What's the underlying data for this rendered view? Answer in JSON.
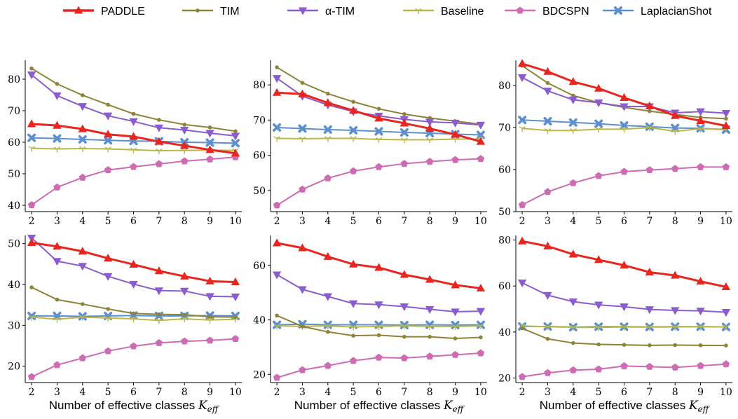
{
  "legend": [
    {
      "name": "PADDLE",
      "color": "#e8251f",
      "marker": "triangle-up",
      "width": 3
    },
    {
      "name": "TIM",
      "color": "#8f8339",
      "marker": "dot",
      "width": 2
    },
    {
      "name": "α-TIM",
      "color": "#8a5ccf",
      "marker": "triangle-down",
      "width": 2
    },
    {
      "name": "Baseline",
      "color": "#b9b747",
      "marker": "tri",
      "width": 2
    },
    {
      "name": "BDCSPN",
      "color": "#cd6bb3",
      "marker": "pentagon",
      "width": 2
    },
    {
      "name": "LaplacianShot",
      "color": "#5b8fd0",
      "marker": "x",
      "width": 2
    }
  ],
  "chart_data": [
    {
      "type": "line",
      "panel": "top-left",
      "x": [
        2,
        3,
        4,
        5,
        6,
        7,
        8,
        9,
        10
      ],
      "ylim": [
        38,
        86
      ],
      "yticks": [
        40,
        50,
        60,
        70,
        80
      ],
      "xlabel": "",
      "series": [
        {
          "name": "PADDLE",
          "values": [
            65.8,
            65.3,
            64.2,
            62.5,
            61.8,
            60.2,
            58.9,
            57.6,
            56.5
          ]
        },
        {
          "name": "TIM",
          "values": [
            83.4,
            78.5,
            74.9,
            71.9,
            69.0,
            67.1,
            65.6,
            64.7,
            63.5
          ]
        },
        {
          "name": "α-TIM",
          "values": [
            81.4,
            74.8,
            71.4,
            68.4,
            66.6,
            64.6,
            63.9,
            62.9,
            62.0
          ]
        },
        {
          "name": "Baseline",
          "values": [
            58.1,
            57.9,
            58.0,
            57.9,
            57.6,
            57.3,
            57.4,
            57.5,
            57.4
          ]
        },
        {
          "name": "BDCSPN",
          "values": [
            40.1,
            45.7,
            48.8,
            51.2,
            52.2,
            53.1,
            54.0,
            54.6,
            55.3
          ]
        },
        {
          "name": "LaplacianShot",
          "values": [
            61.4,
            61.2,
            60.9,
            60.6,
            60.4,
            60.3,
            60.0,
            59.9,
            59.7
          ]
        }
      ]
    },
    {
      "type": "line",
      "panel": "top-middle",
      "x": [
        2,
        3,
        4,
        5,
        6,
        7,
        8,
        9,
        10
      ],
      "ylim": [
        44,
        87
      ],
      "yticks": [
        50,
        60,
        70,
        80
      ],
      "xlabel": "",
      "series": [
        {
          "name": "PADDLE",
          "values": [
            77.8,
            77.4,
            74.9,
            72.7,
            70.5,
            69.1,
            67.6,
            65.9,
            63.9
          ]
        },
        {
          "name": "TIM",
          "values": [
            85.0,
            80.6,
            77.5,
            75.2,
            73.2,
            71.7,
            70.6,
            69.7,
            68.8
          ]
        },
        {
          "name": "α-TIM",
          "values": [
            81.9,
            76.8,
            74.3,
            72.4,
            71.2,
            70.2,
            69.5,
            69.2,
            68.6
          ]
        },
        {
          "name": "Baseline",
          "values": [
            64.8,
            64.7,
            64.8,
            64.8,
            64.5,
            64.4,
            64.4,
            64.6,
            64.6
          ]
        },
        {
          "name": "BDCSPN",
          "values": [
            45.8,
            50.3,
            53.5,
            55.5,
            56.7,
            57.6,
            58.2,
            58.7,
            59.0
          ]
        },
        {
          "name": "LaplacianShot",
          "values": [
            67.9,
            67.6,
            67.3,
            67.1,
            66.8,
            66.5,
            66.3,
            66.0,
            65.8
          ]
        }
      ]
    },
    {
      "type": "line",
      "panel": "top-right",
      "x": [
        2,
        3,
        4,
        5,
        6,
        7,
        8,
        9,
        10
      ],
      "ylim": [
        50,
        86
      ],
      "yticks": [
        50,
        60,
        70,
        80
      ],
      "xlabel": "",
      "series": [
        {
          "name": "PADDLE",
          "values": [
            85.2,
            83.3,
            80.9,
            79.3,
            77.1,
            75.1,
            72.8,
            71.6,
            70.4
          ]
        },
        {
          "name": "TIM",
          "values": [
            84.7,
            80.6,
            77.6,
            75.9,
            74.8,
            73.9,
            73.1,
            72.4,
            72.1
          ]
        },
        {
          "name": "α-TIM",
          "values": [
            81.9,
            78.7,
            76.6,
            75.9,
            75.0,
            75.0,
            73.5,
            73.8,
            73.4
          ]
        },
        {
          "name": "Baseline",
          "values": [
            69.8,
            69.3,
            69.3,
            69.6,
            69.6,
            70.0,
            69.1,
            69.7,
            69.6
          ]
        },
        {
          "name": "BDCSPN",
          "values": [
            51.6,
            54.7,
            56.8,
            58.5,
            59.5,
            59.9,
            60.2,
            60.6,
            60.6
          ]
        },
        {
          "name": "LaplacianShot",
          "values": [
            71.8,
            71.5,
            71.2,
            70.9,
            70.5,
            70.2,
            69.9,
            69.8,
            69.5
          ]
        }
      ]
    },
    {
      "type": "line",
      "panel": "bottom-left",
      "x": [
        2,
        3,
        4,
        5,
        6,
        7,
        8,
        9,
        10
      ],
      "ylim": [
        16,
        52
      ],
      "yticks": [
        20,
        30,
        40,
        50
      ],
      "xlabel": "Number of effective classes",
      "series": [
        {
          "name": "PADDLE",
          "values": [
            50.2,
            49.3,
            48.1,
            46.4,
            44.9,
            43.3,
            42.0,
            40.8,
            40.6
          ]
        },
        {
          "name": "TIM",
          "values": [
            39.3,
            36.3,
            35.2,
            34.0,
            32.9,
            32.7,
            32.6,
            32.1,
            32.0
          ]
        },
        {
          "name": "α-TIM",
          "values": [
            51.4,
            45.7,
            44.5,
            42.0,
            40.1,
            38.5,
            38.4,
            37.1,
            37.0
          ]
        },
        {
          "name": "Baseline",
          "values": [
            32.0,
            31.5,
            32.0,
            31.8,
            31.6,
            31.2,
            31.6,
            31.3,
            31.5
          ]
        },
        {
          "name": "BDCSPN",
          "values": [
            17.4,
            20.3,
            22.0,
            23.7,
            24.9,
            25.7,
            26.1,
            26.3,
            26.7
          ]
        },
        {
          "name": "LaplacianShot",
          "values": [
            32.3,
            32.3,
            32.2,
            32.3,
            32.4,
            32.3,
            32.3,
            32.4,
            32.3
          ]
        }
      ]
    },
    {
      "type": "line",
      "panel": "bottom-middle",
      "x": [
        2,
        3,
        4,
        5,
        6,
        7,
        8,
        9,
        10
      ],
      "ylim": [
        17,
        71
      ],
      "yticks": [
        20,
        40,
        60
      ],
      "xlabel": "Number of effective classes",
      "series": [
        {
          "name": "PADDLE",
          "values": [
            68.2,
            66.4,
            63.2,
            60.4,
            59.2,
            56.6,
            54.8,
            52.8,
            51.6
          ]
        },
        {
          "name": "TIM",
          "values": [
            41.6,
            37.6,
            35.6,
            34.2,
            34.4,
            33.8,
            33.8,
            33.2,
            33.6
          ]
        },
        {
          "name": "α-TIM",
          "values": [
            56.6,
            51.2,
            48.6,
            46.0,
            45.6,
            44.9,
            43.9,
            43.0,
            43.2
          ]
        },
        {
          "name": "Baseline",
          "values": [
            37.8,
            37.6,
            37.8,
            37.4,
            37.6,
            37.8,
            37.6,
            37.6,
            37.8
          ]
        },
        {
          "name": "BDCSPN",
          "values": [
            18.8,
            21.6,
            23.2,
            25.0,
            26.2,
            26.0,
            26.6,
            27.2,
            27.8
          ]
        },
        {
          "name": "LaplacianShot",
          "values": [
            38.2,
            38.4,
            38.2,
            38.2,
            38.2,
            38.1,
            38.2,
            38.1,
            38.2
          ]
        }
      ]
    },
    {
      "type": "line",
      "panel": "bottom-right",
      "x": [
        2,
        3,
        4,
        5,
        6,
        7,
        8,
        9,
        10
      ],
      "ylim": [
        18,
        82
      ],
      "yticks": [
        20,
        40,
        60,
        80
      ],
      "xlabel": "Number of effective classes",
      "series": [
        {
          "name": "PADDLE",
          "values": [
            79.5,
            77.3,
            73.8,
            71.4,
            69.0,
            66.0,
            64.6,
            62.0,
            59.6
          ]
        },
        {
          "name": "TIM",
          "values": [
            41.6,
            37.0,
            35.2,
            34.6,
            34.4,
            34.2,
            34.3,
            34.2,
            34.1
          ]
        },
        {
          "name": "α-TIM",
          "values": [
            61.4,
            56.0,
            53.2,
            51.8,
            51.0,
            49.8,
            49.4,
            49.2,
            48.6
          ]
        },
        {
          "name": "Baseline",
          "values": [
            42.6,
            42.3,
            42.0,
            42.0,
            42.2,
            42.1,
            42.2,
            42.3,
            42.2
          ]
        },
        {
          "name": "BDCSPN",
          "values": [
            20.5,
            22.2,
            23.4,
            23.8,
            25.2,
            24.9,
            24.6,
            25.3,
            26.0
          ]
        },
        {
          "name": "LaplacianShot",
          "values": [
            42.4,
            42.4,
            42.1,
            42.3,
            42.3,
            42.2,
            42.3,
            42.3,
            42.2
          ]
        }
      ]
    }
  ]
}
